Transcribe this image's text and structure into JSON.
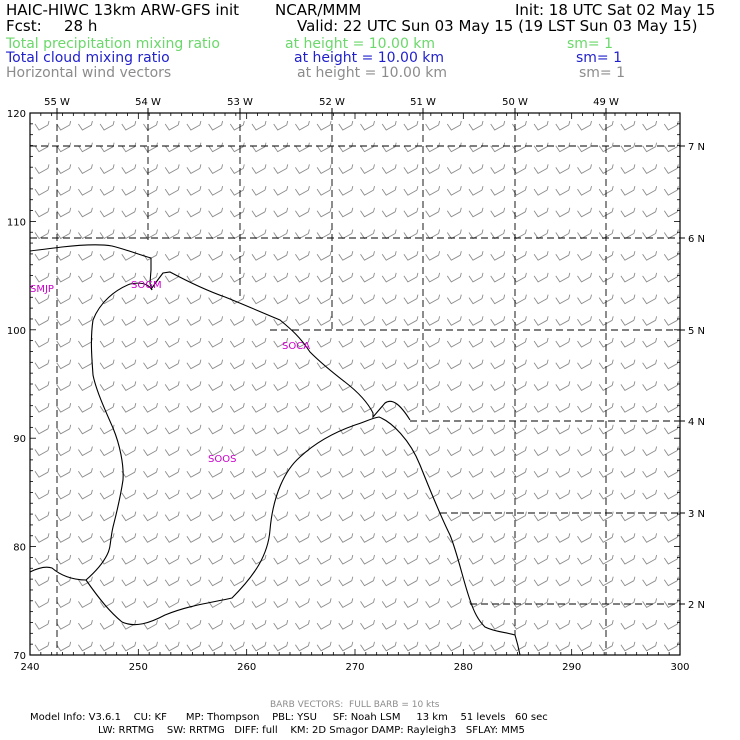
{
  "header": {
    "model_title": "HAIC-HIWC 13km ARW-GFS init",
    "org": "NCAR/MMM",
    "init": "Init: 18 UTC Sat 02 May 15",
    "fcst_label": "Fcst:",
    "fcst_value": "28 h",
    "valid": "Valid: 22 UTC Sun 03 May 15 (19 LST Sun 03 May 15)"
  },
  "fields": [
    {
      "name": "Total precipitation mixing ratio",
      "height": "at height = 10.00 km",
      "sm": "sm= 1",
      "color": "#6ad86a"
    },
    {
      "name": "Total cloud mixing ratio",
      "height": "at height = 10.00 km",
      "sm": "sm= 1",
      "color": "#1f1fcc"
    },
    {
      "name": "Horizontal wind vectors",
      "height": "at height = 10.00 km",
      "sm": "sm= 1",
      "color": "#8c8c8c"
    }
  ],
  "map": {
    "lon_labels": [
      "55 W",
      "54 W",
      "53 W",
      "52 W",
      "51 W",
      "50 W",
      "49 W"
    ],
    "lat_labels": [
      "7 N",
      "6 N",
      "5 N",
      "4 N",
      "3 N",
      "2 N"
    ],
    "x_ticks": [
      "240",
      "250",
      "260",
      "270",
      "280",
      "290",
      "300"
    ],
    "y_ticks": [
      "120",
      "110",
      "100",
      "90",
      "80",
      "70"
    ],
    "stations": [
      "SMJP",
      "SOGM",
      "SOCA",
      "SOOS"
    ],
    "coastline_color": "#000000",
    "barb_color": "#8c8c8c",
    "station_color": "#cc00cc"
  },
  "footer": {
    "barb_note": "BARB VECTORS:  FULL BARB = 10 kts",
    "line1": "Model Info: V3.6.1    CU: KF      MP: Thompson    PBL: YSU     SF: Noah LSM     13 km    51 levels   60 sec",
    "line2": "LW: RRTMG    SW: RRTMG   DIFF: full    KM: 2D Smagor DAMP: Rayleigh3   SFLAY: MM5"
  }
}
